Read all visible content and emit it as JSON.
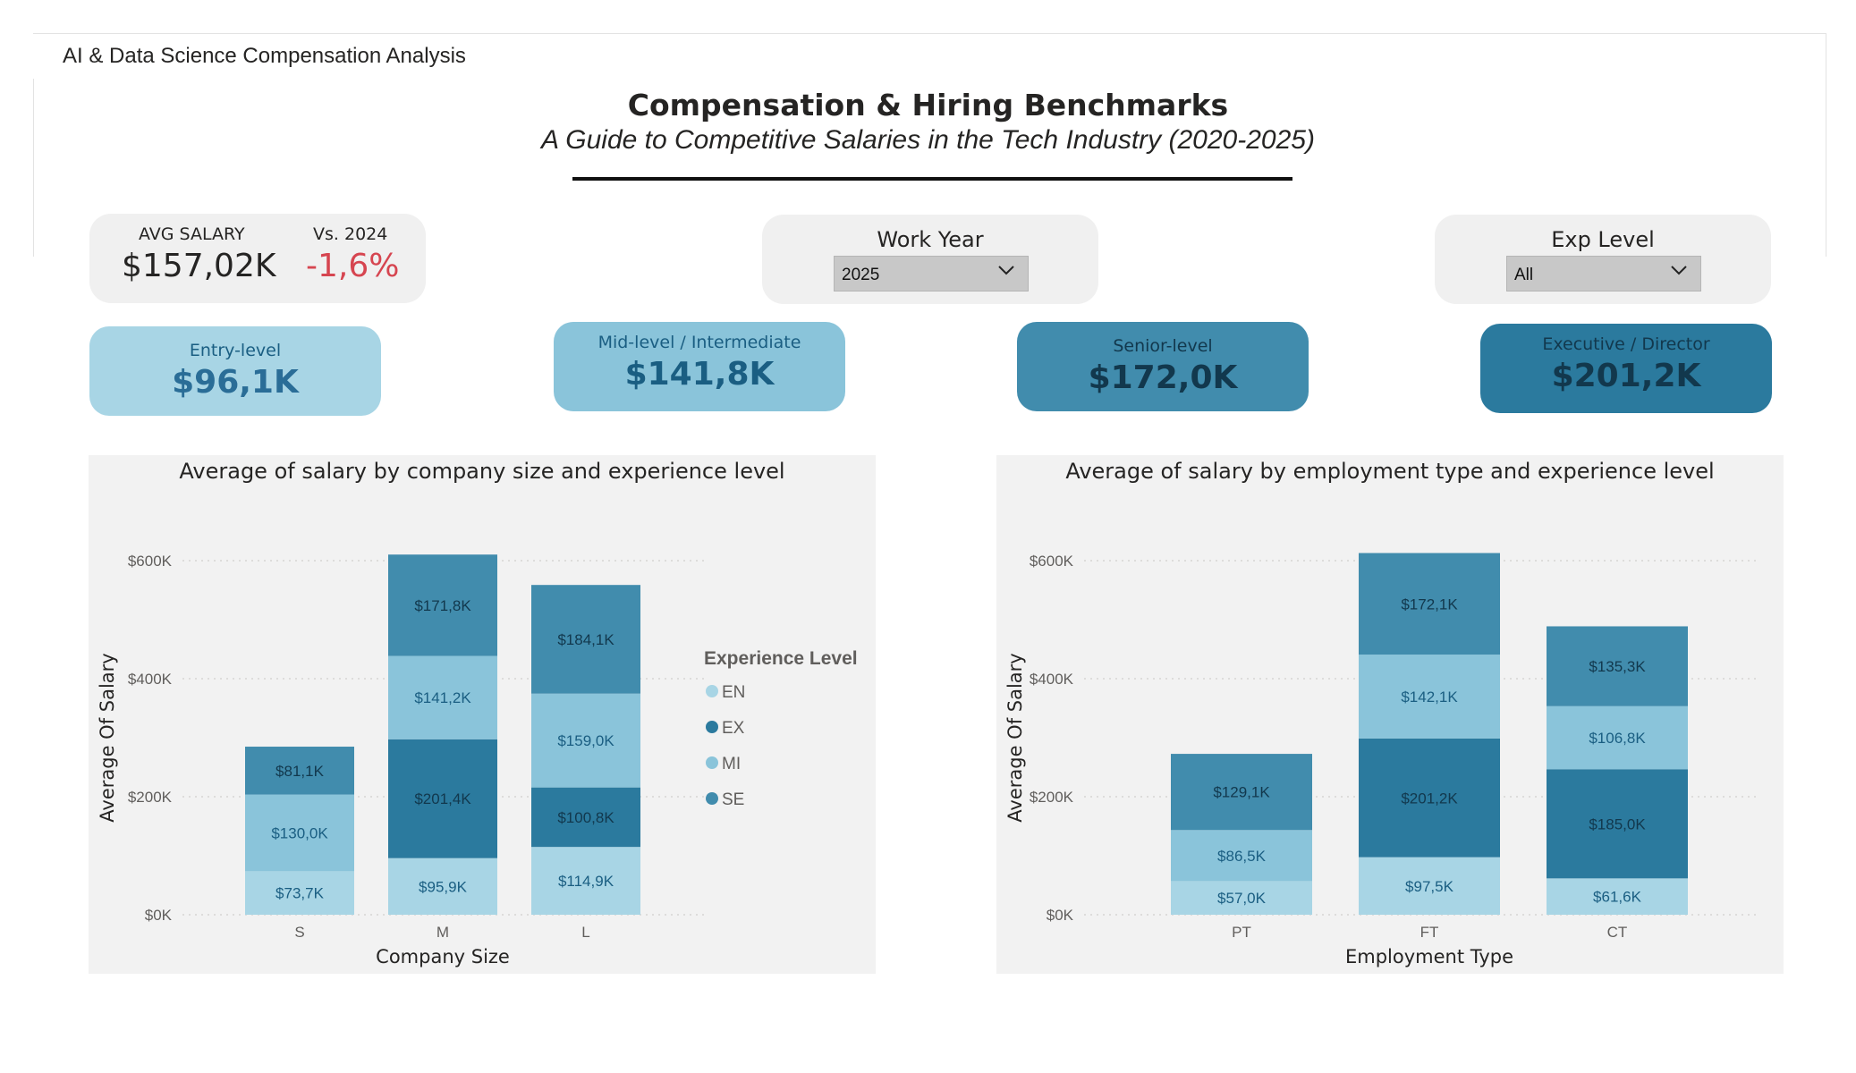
{
  "app": {
    "tab_title": "AI & Data Science Compensation Analysis"
  },
  "header": {
    "title": "Compensation & Hiring Benchmarks",
    "subtitle": "A Guide to Competitive Salaries in the Tech Industry (2020-2025)"
  },
  "kpi": {
    "avg_label": "AVG SALARY",
    "avg_value": "$157,02K",
    "vs_label": "Vs. 2024",
    "vs_value": "-1,6%"
  },
  "slicers": {
    "work_year": {
      "title": "Work Year",
      "value": "2025"
    },
    "exp_level": {
      "title": "Exp Level",
      "value": "All"
    }
  },
  "level_cards": [
    {
      "name": "Entry-level",
      "value": "$96,1K",
      "color": "#a8d5e5"
    },
    {
      "name": "Mid-level / Intermediate",
      "value": "$141,8K",
      "color": "#8ac4da"
    },
    {
      "name": "Senior-level",
      "value": "$172,0K",
      "color": "#418cad"
    },
    {
      "name": "Executive / Director",
      "value": "$201,2K",
      "color": "#2b7a9e"
    }
  ],
  "colors": {
    "EN": "#a8d5e5",
    "MI": "#8ac4da",
    "EX": "#2b7a9e",
    "SE": "#418cad"
  },
  "chart_data": [
    {
      "type": "bar",
      "stacked": true,
      "title": "Average of salary by company size and experience level",
      "xlabel": "Company Size",
      "ylabel": "Average Of Salary",
      "ylim": [
        0,
        600
      ],
      "yticks": [
        "$0K",
        "$200K",
        "$400K",
        "$600K"
      ],
      "categories": [
        "S",
        "M",
        "L"
      ],
      "legend": {
        "title": "Experience Level",
        "entries": [
          "EN",
          "EX",
          "MI",
          "SE"
        ],
        "position": "right"
      },
      "series": [
        {
          "name": "EN",
          "values": [
            73.7,
            95.9,
            114.9
          ],
          "labels": [
            "$73,7K",
            "$95,9K",
            "$114,9K"
          ]
        },
        {
          "name": "MI",
          "values": [
            130.0,
            0,
            0
          ],
          "labels": [
            "$130,0K",
            "",
            ""
          ]
        },
        {
          "name": "EX",
          "values": [
            0,
            201.4,
            100.8
          ],
          "labels": [
            "",
            "$201,4K",
            "$100,8K"
          ]
        },
        {
          "name": "MI",
          "values": [
            0,
            141.2,
            159.0
          ],
          "labels": [
            "",
            "$141,2K",
            "$159,0K"
          ]
        },
        {
          "name": "SE",
          "values": [
            81.1,
            171.8,
            184.1
          ],
          "labels": [
            "$81,1K",
            "$171,8K",
            "$184,1K"
          ]
        }
      ]
    },
    {
      "type": "bar",
      "stacked": true,
      "title": "Average of salary by employment type and experience level",
      "xlabel": "Employment Type",
      "ylabel": "Average Of Salary",
      "ylim": [
        0,
        600
      ],
      "yticks": [
        "$0K",
        "$200K",
        "$400K",
        "$600K"
      ],
      "categories": [
        "PT",
        "FT",
        "CT"
      ],
      "series": [
        {
          "name": "EN",
          "values": [
            57.0,
            97.5,
            61.6
          ],
          "labels": [
            "$57,0K",
            "$97,5K",
            "$61,6K"
          ]
        },
        {
          "name": "MI",
          "values": [
            86.5,
            0,
            0
          ],
          "labels": [
            "$86,5K",
            "",
            ""
          ]
        },
        {
          "name": "EX",
          "values": [
            0,
            201.2,
            185.0
          ],
          "labels": [
            "",
            "$201,2K",
            "$185,0K"
          ]
        },
        {
          "name": "MI",
          "values": [
            0,
            142.1,
            106.8
          ],
          "labels": [
            "",
            "$142,1K",
            "$106,8K"
          ]
        },
        {
          "name": "SE",
          "values": [
            129.1,
            172.1,
            135.3
          ],
          "labels": [
            "$129,1K",
            "$172,1K",
            "$135,3K"
          ]
        }
      ]
    }
  ]
}
